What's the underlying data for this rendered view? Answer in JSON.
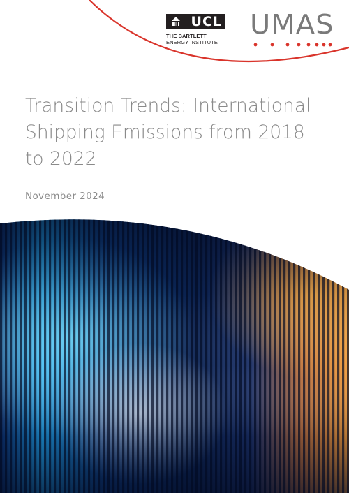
{
  "logos": {
    "ucl": {
      "wordmark": "UCL",
      "line1": "THE BARTLETT",
      "line2": "ENERGY INSTITUTE"
    },
    "umas": {
      "wordmark": "UMAS"
    }
  },
  "cover": {
    "title": "Transition Trends: International Shipping Emissions from 2018 to 2022",
    "date": "November 2024"
  },
  "colors": {
    "accent_red": "#d9342b",
    "title_grey": "#8a8a8a",
    "logo_dark": "#231f20",
    "umas_grey": "#7a7a7a",
    "art_navy": "#0b1f4d",
    "art_cyan": "#22b8f0",
    "art_orange": "#f29a38"
  },
  "icons": {
    "ucl_mark": "portico-icon"
  }
}
